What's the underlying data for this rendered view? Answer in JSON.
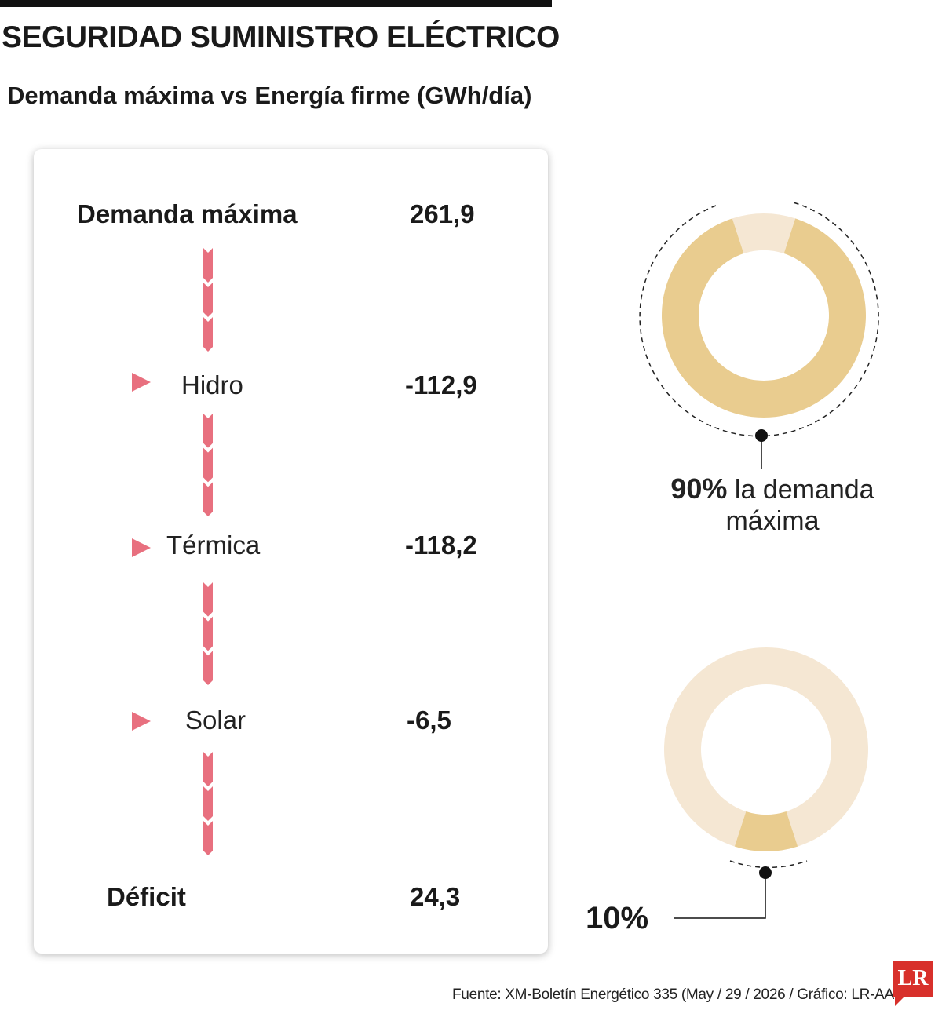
{
  "title": "SEGURIDAD SUMINISTRO ELÉCTRICO",
  "subtitle": "Demanda máxima vs Energía firme (GWh/día)",
  "source": "Fuente: XM-Boletín Energético 335 (May / 29 / 2026 / Gráfico: LR-AA",
  "logo": "LR",
  "colors": {
    "accent": "#e8707f",
    "donut_main": "#e9cc8f",
    "donut_light": "#f5e7d3"
  },
  "chart_data": [
    {
      "type": "table",
      "unit": "GWh/día",
      "rows": [
        {
          "label": "Demanda máxima",
          "value": "261,9"
        },
        {
          "label": "Hidro",
          "value": "-112,9"
        },
        {
          "label": "Térmica",
          "value": "-118,2"
        },
        {
          "label": "Solar",
          "value": "-6,5"
        },
        {
          "label": "Déficit",
          "value": "24,3"
        }
      ]
    },
    {
      "type": "pie",
      "donuts": [
        {
          "share": 90,
          "value_label": "90%",
          "text": "la demanda",
          "text2": "máxima"
        },
        {
          "share": 10,
          "value_label": "10%"
        }
      ]
    }
  ]
}
